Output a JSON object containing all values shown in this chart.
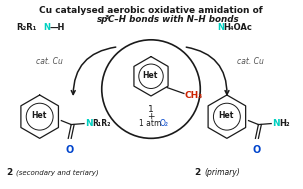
{
  "title_line1": "Cu catalysed aerobic oxidative amidation of",
  "title_line2_a": "sp",
  "title_line2_sup": "3",
  "title_line2_b": "C–H bonds with N–H bonds",
  "bg_color": "#ffffff",
  "cyan_color": "#00d0c0",
  "red_color": "#cc2200",
  "blue_color": "#0044cc",
  "black_color": "#1a1a1a",
  "gray_color": "#555555"
}
